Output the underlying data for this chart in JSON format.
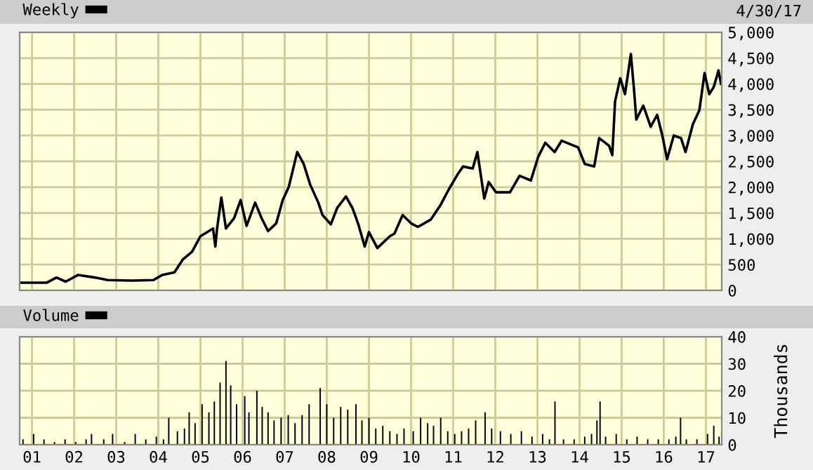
{
  "chart_data": [
    {
      "type": "line",
      "legend": "top left",
      "grid": true,
      "tick_labels": "y",
      "marker": "none",
      "line_style": "solid",
      "annotations": [
        "4/30/17"
      ],
      "xlim": [
        "2000-09-16",
        "2017-05-18"
      ],
      "ylim": [
        0,
        5000
      ],
      "yticks": [
        0,
        500,
        {
          "value": 1000,
          "label": "1,000"
        },
        {
          "value": 1500,
          "label": "1,500"
        },
        {
          "value": 2000,
          "label": "2,000"
        },
        {
          "value": 2500,
          "label": "2,500"
        },
        {
          "value": 3000,
          "label": "3,000"
        },
        {
          "value": 3500,
          "label": "3,500"
        },
        {
          "value": 4000,
          "label": "4,000"
        },
        {
          "value": 4500,
          "label": "4,500"
        },
        {
          "value": 5000,
          "label": "5,000"
        }
      ],
      "xticks": [
        {
          "value": "2001-01-01",
          "label": null
        },
        {
          "value": "2002-01-01",
          "label": null
        },
        {
          "value": "2003-01-01",
          "label": null
        },
        {
          "value": "2004-01-01",
          "label": null
        },
        {
          "value": "2005-01-01",
          "label": null
        },
        {
          "value": "2006-01-01",
          "label": null
        },
        {
          "value": "2007-01-01",
          "label": null
        },
        {
          "value": "2008-01-01",
          "label": null
        },
        {
          "value": "2009-01-01",
          "label": null
        },
        {
          "value": "2010-01-01",
          "label": null
        },
        {
          "value": "2011-01-01",
          "label": null
        },
        {
          "value": "2012-01-01",
          "label": null
        },
        {
          "value": "2013-01-01",
          "label": null
        },
        {
          "value": "2014-01-01",
          "label": null
        },
        {
          "value": "2015-01-01",
          "label": null
        },
        {
          "value": "2016-01-01",
          "label": null
        },
        {
          "value": "2017-01-01",
          "label": null
        }
      ],
      "series": [
        {
          "name": "Weekly",
          "color": "#000000",
          "x": [
            "2000-09-20",
            "2001-01-15",
            "2001-05-10",
            "2001-08-01",
            "2001-10-20",
            "2002-02-05",
            "2002-07-01",
            "2002-10-20",
            "2003-05-20",
            "2003-11-20",
            "2004-02-05",
            "2004-05-20",
            "2004-08-01",
            "2004-10-20",
            "2005-01-01",
            "2005-04-20",
            "2005-05-10",
            "2005-05-25",
            "2005-07-01",
            "2005-08-10",
            "2005-10-20",
            "2005-12-15",
            "2006-02-05",
            "2006-04-20",
            "2006-06-15",
            "2006-08-10",
            "2006-10-20",
            "2006-12-15",
            "2007-02-05",
            "2007-04-20",
            "2007-06-15",
            "2007-08-10",
            "2007-10-20",
            "2007-11-25",
            "2008-02-05",
            "2008-04-01",
            "2008-06-15",
            "2008-08-10",
            "2008-10-01",
            "2008-11-25",
            "2009-01-01",
            "2009-03-15",
            "2009-07-01",
            "2009-08-10",
            "2009-10-20",
            "2010-01-01",
            "2010-03-01",
            "2010-06-20",
            "2010-09-10",
            "2010-11-25",
            "2011-02-15",
            "2011-03-28",
            "2011-06-20",
            "2011-07-30",
            "2011-09-28",
            "2011-11-05",
            "2012-01-08",
            "2012-05-08",
            "2012-07-30",
            "2012-11-05",
            "2013-01-08",
            "2013-03-10",
            "2013-05-30",
            "2013-07-30",
            "2013-12-20",
            "2014-02-15",
            "2014-05-08",
            "2014-06-20",
            "2014-09-15",
            "2014-10-12",
            "2014-11-05",
            "2014-12-20",
            "2015-01-30",
            "2015-03-22",
            "2015-04-20",
            "2015-05-08",
            "2015-07-08",
            "2015-09-10",
            "2015-11-05",
            "2015-12-20",
            "2016-01-30",
            "2016-03-28",
            "2016-05-30",
            "2016-07-08",
            "2016-09-10",
            "2016-11-05",
            "2016-12-20",
            "2017-01-30",
            "2017-03-10",
            "2017-04-20",
            "2017-05-12"
          ],
          "values": [
            150,
            150,
            150,
            250,
            170,
            300,
            250,
            200,
            190,
            200,
            300,
            350,
            600,
            750,
            1050,
            1200,
            850,
            1200,
            1800,
            1200,
            1400,
            1750,
            1250,
            1700,
            1400,
            1150,
            1300,
            1750,
            2000,
            2680,
            2450,
            2050,
            1700,
            1460,
            1280,
            1600,
            1820,
            1600,
            1280,
            850,
            1130,
            820,
            1050,
            1100,
            1460,
            1300,
            1230,
            1370,
            1640,
            1960,
            2270,
            2400,
            2360,
            2680,
            1780,
            2100,
            1900,
            1900,
            2220,
            2130,
            2590,
            2860,
            2680,
            2900,
            2770,
            2450,
            2400,
            2950,
            2800,
            2620,
            3660,
            4110,
            3800,
            4580,
            3850,
            3310,
            3580,
            3170,
            3400,
            3000,
            2540,
            3000,
            2950,
            2680,
            3220,
            3490,
            4210,
            3800,
            3940,
            4260,
            4000
          ]
        }
      ]
    },
    {
      "type": "bar",
      "legend": "top left",
      "grid": true,
      "ylabel": "Thousands",
      "xlim": [
        "2000-09-16",
        "2017-05-18"
      ],
      "ylim": [
        0,
        40
      ],
      "yticks": [
        0,
        10,
        20,
        30,
        40
      ],
      "xticks": [
        {
          "value": "2001-01-01",
          "label": "01"
        },
        {
          "value": "2002-01-01",
          "label": "02"
        },
        {
          "value": "2003-01-01",
          "label": "03"
        },
        {
          "value": "2004-01-01",
          "label": "04"
        },
        {
          "value": "2005-01-01",
          "label": "05"
        },
        {
          "value": "2006-01-01",
          "label": "06"
        },
        {
          "value": "2007-01-01",
          "label": "07"
        },
        {
          "value": "2008-01-01",
          "label": "08"
        },
        {
          "value": "2009-01-01",
          "label": "09"
        },
        {
          "value": "2010-01-01",
          "label": "10"
        },
        {
          "value": "2011-01-01",
          "label": "11"
        },
        {
          "value": "2012-01-01",
          "label": "12"
        },
        {
          "value": "2013-01-01",
          "label": "13"
        },
        {
          "value": "2014-01-01",
          "label": "14"
        },
        {
          "value": "2015-01-01",
          "label": "15"
        },
        {
          "value": "2016-01-01",
          "label": "16"
        },
        {
          "value": "2017-01-01",
          "label": "17"
        }
      ],
      "series": [
        {
          "name": "Volume",
          "color": "#000000",
          "x": [
            "2000-10-15",
            "2001-01-15",
            "2001-04-15",
            "2001-07-15",
            "2001-10-15",
            "2002-01-15",
            "2002-04-15",
            "2002-06-01",
            "2002-09-15",
            "2002-12-01",
            "2003-03-15",
            "2003-06-15",
            "2003-09-15",
            "2003-12-15",
            "2004-02-15",
            "2004-04-01",
            "2004-06-15",
            "2004-08-15",
            "2004-09-25",
            "2004-11-15",
            "2005-01-15",
            "2005-03-15",
            "2005-05-01",
            "2005-06-20",
            "2005-08-10",
            "2005-09-20",
            "2005-11-10",
            "2006-01-20",
            "2006-02-25",
            "2006-05-05",
            "2006-06-20",
            "2006-08-10",
            "2006-10-01",
            "2006-12-01",
            "2007-02-01",
            "2007-04-01",
            "2007-06-01",
            "2007-08-01",
            "2007-11-05",
            "2008-01-01",
            "2008-03-01",
            "2008-05-01",
            "2008-07-01",
            "2008-09-10",
            "2008-11-01",
            "2009-01-01",
            "2009-03-01",
            "2009-05-01",
            "2009-07-01",
            "2009-09-01",
            "2009-11-01",
            "2010-01-20",
            "2010-03-25",
            "2010-05-25",
            "2010-07-15",
            "2010-09-15",
            "2010-11-15",
            "2011-01-15",
            "2011-03-15",
            "2011-05-15",
            "2011-07-15",
            "2011-10-05",
            "2011-12-01",
            "2012-02-15",
            "2012-05-15",
            "2012-08-15",
            "2012-11-15",
            "2013-02-15",
            "2013-04-15",
            "2013-06-02",
            "2013-08-15",
            "2013-11-15",
            "2014-02-15",
            "2014-04-15",
            "2014-06-01",
            "2014-06-28",
            "2014-08-15",
            "2014-11-15",
            "2015-02-15",
            "2015-05-15",
            "2015-08-15",
            "2015-11-15",
            "2016-02-15",
            "2016-04-15",
            "2016-05-26",
            "2016-07-15",
            "2016-10-15",
            "2017-01-15",
            "2017-03-10",
            "2017-04-25"
          ],
          "values": [
            2,
            4,
            2,
            1,
            2,
            1,
            2,
            4,
            2,
            4,
            1,
            4,
            2,
            3,
            2,
            10,
            5,
            6,
            12,
            8,
            15,
            12,
            16,
            23,
            31,
            22,
            15,
            18,
            12,
            20,
            14,
            12,
            9,
            10,
            11,
            8,
            11,
            15,
            21,
            15,
            10,
            14,
            13,
            15,
            9,
            10,
            6,
            7,
            5,
            4,
            6,
            5,
            10,
            8,
            7,
            10,
            5,
            4,
            5,
            6,
            9,
            12,
            6,
            5,
            4,
            5,
            3,
            4,
            2,
            16,
            2,
            2,
            3,
            4,
            9,
            16,
            3,
            4,
            2,
            3,
            2,
            2,
            2,
            3,
            10,
            2,
            2,
            4,
            7,
            3
          ]
        }
      ]
    }
  ]
}
